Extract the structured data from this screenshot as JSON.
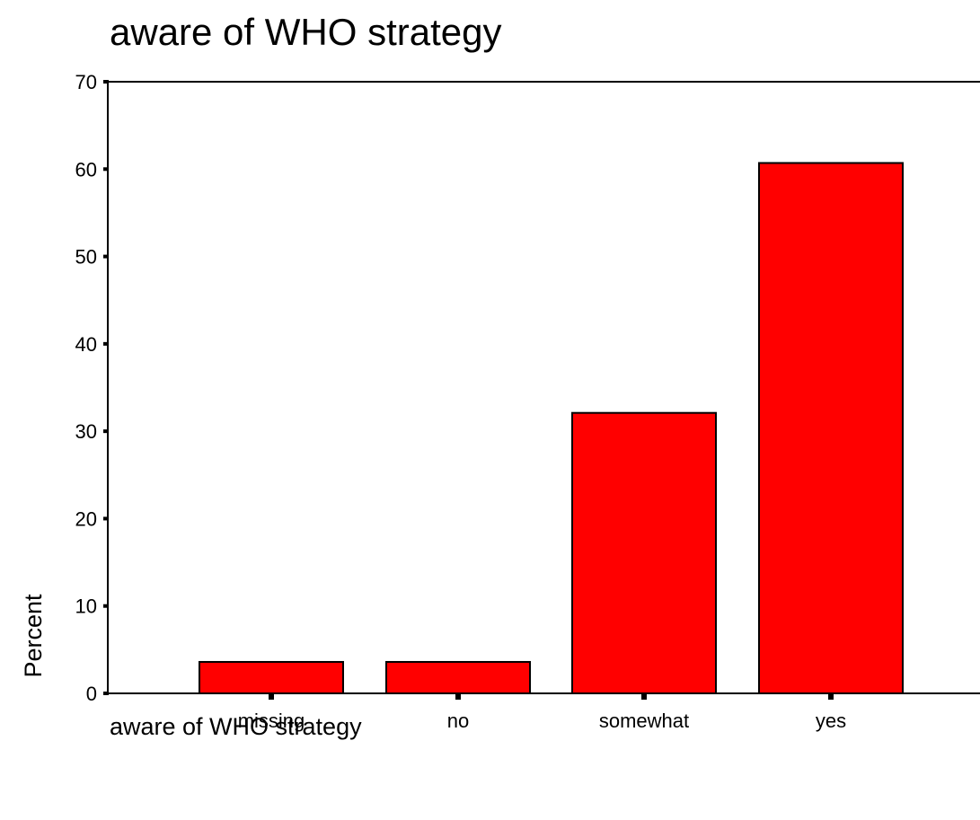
{
  "chart_data": {
    "type": "bar",
    "title": "aware of WHO strategy",
    "xlabel": "aware of WHO strategy",
    "ylabel": "Percent",
    "categories": [
      "missing",
      "no",
      "somewhat",
      "yes"
    ],
    "values": [
      3.6,
      3.6,
      32.1,
      60.7
    ],
    "ylim": [
      0,
      70
    ],
    "yticks": [
      "0",
      "10",
      "20",
      "30",
      "40",
      "50",
      "60",
      "70"
    ],
    "grid": false,
    "bar_color": "#ff0000",
    "bar_edge_color": "#000000"
  }
}
